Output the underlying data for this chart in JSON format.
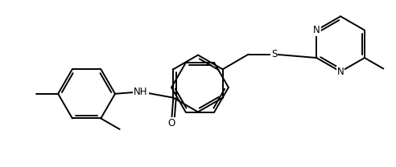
{
  "background": "#ffffff",
  "line_color": "#000000",
  "bond_width": 1.4,
  "font_size": 8.5,
  "fig_width": 4.92,
  "fig_height": 2.08,
  "dpi": 100,
  "xlim": [
    0,
    10.0
  ],
  "ylim": [
    0,
    4.2
  ]
}
